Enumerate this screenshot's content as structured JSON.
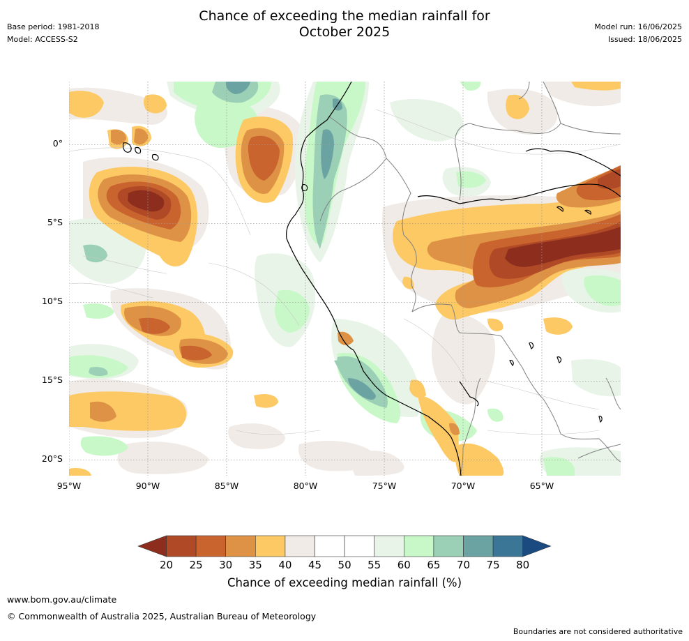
{
  "header": {
    "title_line1": "Chance of exceeding the median rainfall for",
    "title_line2": "October 2025",
    "base_period": "Base period: 1981-2018",
    "model": "Model: ACCESS-S2",
    "model_run": "Model run: 16/06/2025",
    "issued": "Issued: 18/06/2025"
  },
  "map": {
    "lon_min": -95,
    "lon_max": -60,
    "lat_min": -21,
    "lat_max": 4,
    "lat_labels": [
      "0°",
      "5°S",
      "10°S",
      "15°S",
      "20°S"
    ],
    "lat_values": [
      0,
      -5,
      -10,
      -15,
      -20
    ],
    "lon_labels": [
      "95°W",
      "90°W",
      "85°W",
      "80°W",
      "75°W",
      "70°W",
      "65°W"
    ],
    "lon_values": [
      -95,
      -90,
      -85,
      -80,
      -75,
      -70,
      -65
    ],
    "coastline_color": "#000000",
    "border_color": "#808080",
    "grid_color": "#9a9a9a"
  },
  "legend": {
    "title": "Chance of exceeding median rainfall (%)",
    "ticks": [
      "20",
      "25",
      "30",
      "35",
      "40",
      "45",
      "50",
      "55",
      "60",
      "65",
      "70",
      "75",
      "80"
    ],
    "colors": [
      "#8c2d1e",
      "#b04a26",
      "#c9642f",
      "#de9245",
      "#fdc964",
      "#f0ebe6",
      "#ffffff",
      "#ffffff",
      "#e8f4e8",
      "#c8f8c8",
      "#9bcfb6",
      "#6ba3a2",
      "#3c7696",
      "#1a4a80"
    ]
  },
  "footer": {
    "url": "www.bom.gov.au/climate",
    "copyright": "© Commonwealth of Australia 2025, Australian Bureau of Meteorology",
    "disclaimer": "Boundaries are not considered authoritative"
  }
}
